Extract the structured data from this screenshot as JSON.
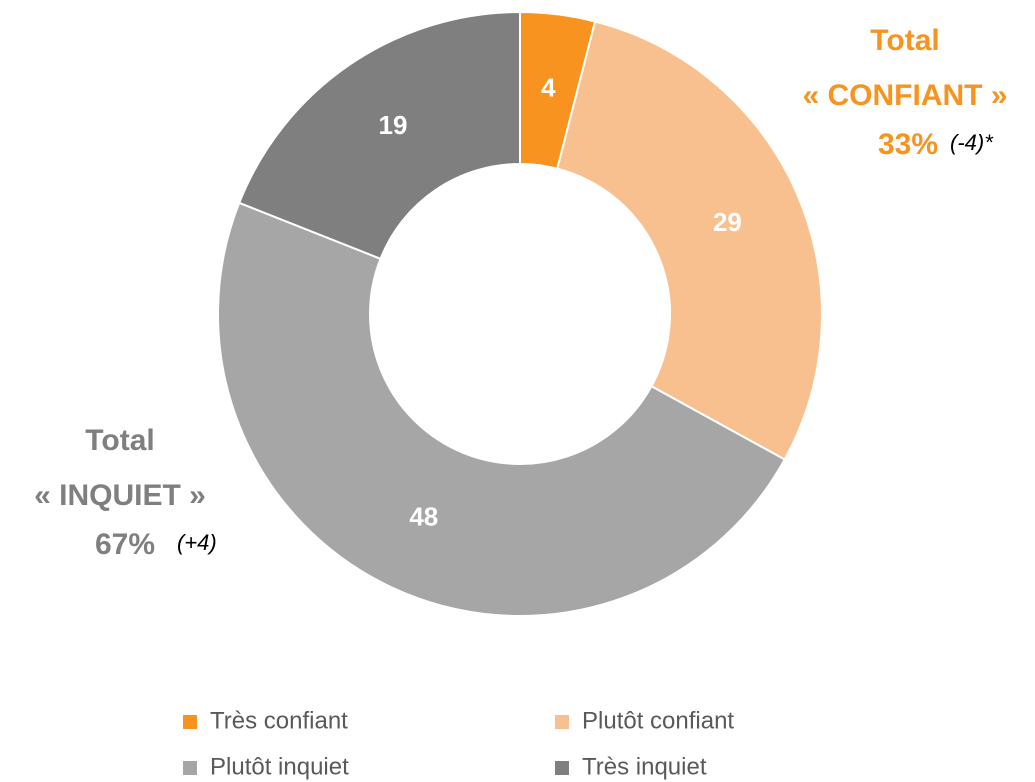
{
  "chart_data": {
    "type": "pie",
    "donut": true,
    "categories": [
      "Très confiant",
      "Plutôt confiant",
      "Plutôt inquiet",
      "Très inquiet"
    ],
    "values": [
      4,
      29,
      48,
      19
    ],
    "colors": [
      "#f7931e",
      "#f9c08f",
      "#a6a6a6",
      "#7f7f7f"
    ],
    "annotations": [
      {
        "lines": [
          "Total",
          "« CONFIANT »"
        ],
        "value": "33%",
        "change": "(-4)*",
        "color": "#f7931e"
      },
      {
        "lines": [
          "Total",
          "« INQUIET »"
        ],
        "value": "67%",
        "change": "(+4)",
        "color": "#7f7f7f"
      }
    ]
  }
}
